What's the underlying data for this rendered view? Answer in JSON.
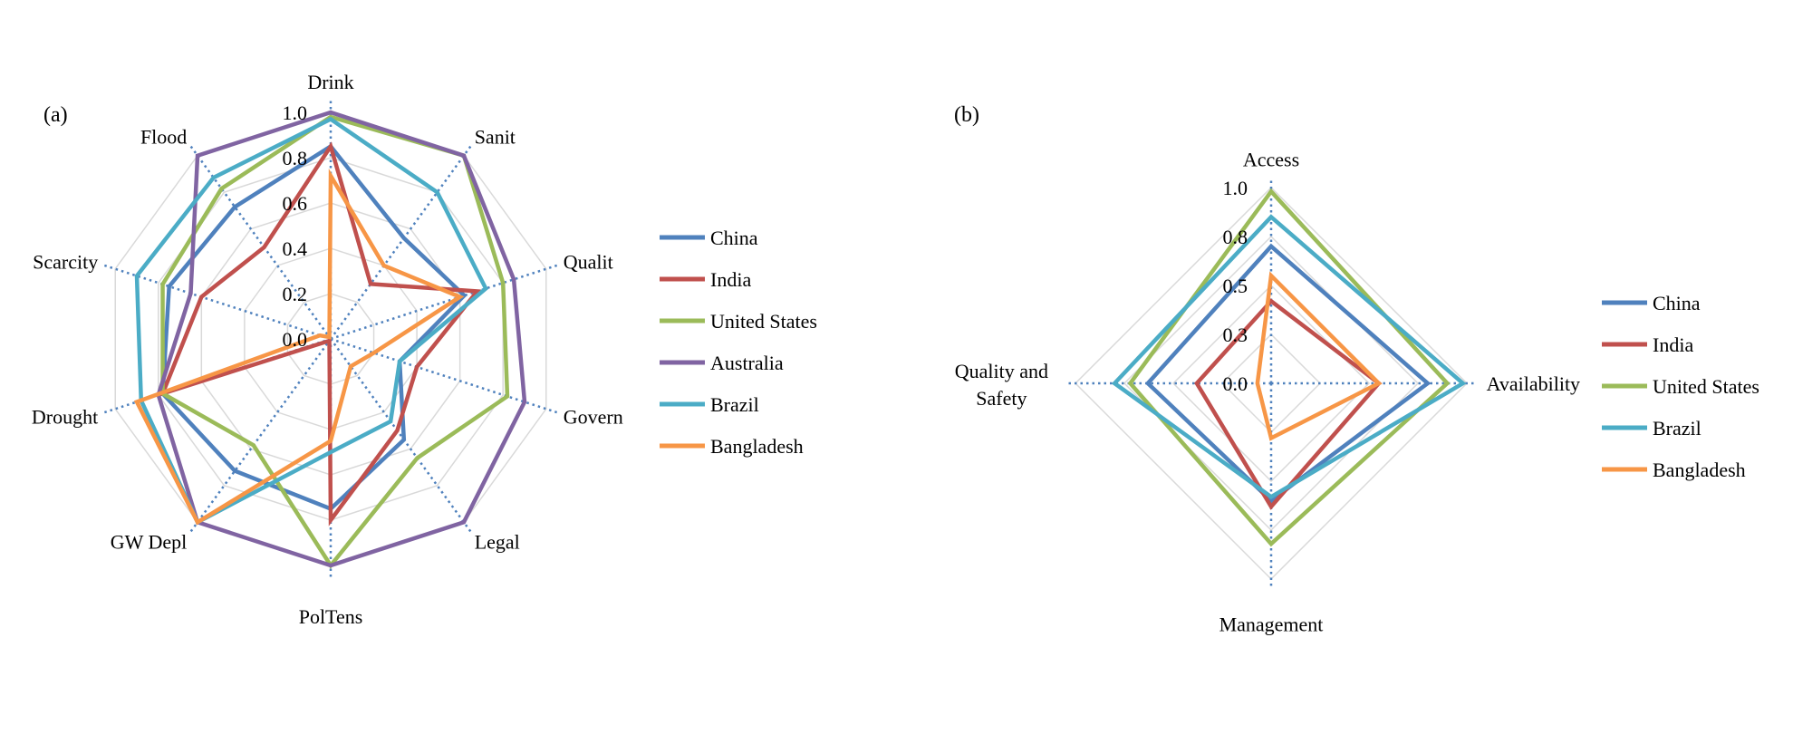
{
  "chart_data": [
    {
      "panel_label": "(a)",
      "type": "radar",
      "axes": [
        "Drink",
        "Sanit",
        "Qualit",
        "Govern",
        "Legal",
        "PolTens",
        "GW Depl",
        "Drought",
        "Scarcity",
        "Flood"
      ],
      "rlim": [
        0,
        1
      ],
      "tick_labels": [
        "0.0",
        "0.2",
        "0.4",
        "0.6",
        "0.8",
        "1.0"
      ],
      "grid": true,
      "legend_position": "right",
      "series": [
        {
          "name": "China",
          "color": "#4F81BD",
          "values": [
            0.85,
            0.55,
            0.62,
            0.32,
            0.55,
            0.75,
            0.72,
            0.78,
            0.75,
            0.72
          ]
        },
        {
          "name": "India",
          "color": "#C0504D",
          "values": [
            0.85,
            0.3,
            0.68,
            0.4,
            0.5,
            0.8,
            0.01,
            0.78,
            0.6,
            0.5
          ]
        },
        {
          "name": "United States",
          "color": "#9BBB59",
          "values": [
            0.98,
            1.0,
            0.8,
            0.82,
            0.65,
            1.0,
            0.58,
            0.78,
            0.78,
            0.82
          ]
        },
        {
          "name": "Australia",
          "color": "#8064A2",
          "values": [
            1.0,
            1.0,
            0.85,
            0.9,
            1.0,
            1.0,
            1.0,
            0.8,
            0.65,
            1.0
          ]
        },
        {
          "name": "Brazil",
          "color": "#4BACC6",
          "values": [
            0.97,
            0.8,
            0.72,
            0.32,
            0.45,
            0.5,
            1.0,
            0.88,
            0.9,
            0.88
          ]
        },
        {
          "name": "Bangladesh",
          "color": "#F79646",
          "values": [
            0.72,
            0.4,
            0.6,
            0.2,
            0.15,
            0.45,
            1.0,
            0.9,
            0.05,
            0.01
          ]
        }
      ]
    },
    {
      "panel_label": "(b)",
      "type": "radar",
      "axes": [
        "Access",
        "Availability",
        "Management",
        "Quality and Safety"
      ],
      "rlim": [
        0,
        1
      ],
      "tick_labels": [
        "0.0",
        "0.3",
        "0.5",
        "0.8",
        "1.0"
      ],
      "grid": true,
      "legend_position": "right",
      "series": [
        {
          "name": "China",
          "color": "#4F81BD",
          "values": [
            0.7,
            0.8,
            0.6,
            0.63
          ]
        },
        {
          "name": "India",
          "color": "#C0504D",
          "values": [
            0.42,
            0.55,
            0.63,
            0.38
          ]
        },
        {
          "name": "United States",
          "color": "#9BBB59",
          "values": [
            0.98,
            0.9,
            0.82,
            0.72
          ]
        },
        {
          "name": "Brazil",
          "color": "#4BACC6",
          "values": [
            0.85,
            0.98,
            0.58,
            0.8
          ]
        },
        {
          "name": "Bangladesh",
          "color": "#F79646",
          "values": [
            0.55,
            0.55,
            0.28,
            0.07
          ]
        }
      ]
    }
  ]
}
